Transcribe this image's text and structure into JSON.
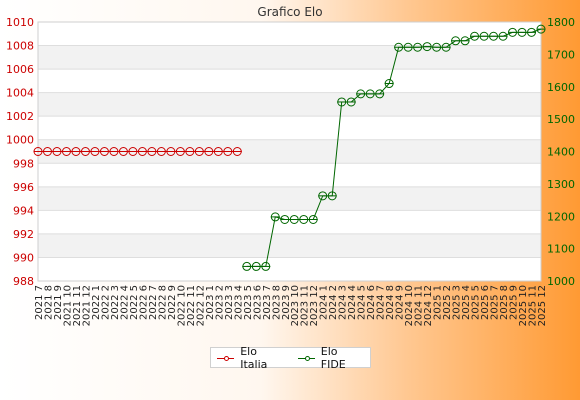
{
  "chart_data": {
    "type": "line",
    "title": "Grafico Elo",
    "categories": [
      "2021 7",
      "2021 8",
      "2021 9",
      "2021 10",
      "2021 11",
      "2021 12",
      "2022 1",
      "2022 2",
      "2022 3",
      "2022 4",
      "2022 5",
      "2022 6",
      "2022 7",
      "2022 8",
      "2022 9",
      "2022 10",
      "2022 11",
      "2022 12",
      "2023 1",
      "2023 2",
      "2023 3",
      "2023 4",
      "2023 5",
      "2023 6",
      "2023 7",
      "2023 8",
      "2023 9",
      "2023 10",
      "2023 11",
      "2023 12",
      "2024 1",
      "2024 2",
      "2024 3",
      "2024 4",
      "2024 5",
      "2024 6",
      "2024 7",
      "2024 8",
      "2024 9",
      "2024 10",
      "2024 11",
      "2024 12",
      "2025 1",
      "2025 2",
      "2025 3",
      "2025 4",
      "2025 5",
      "2025 6",
      "2025 7",
      "2025 8",
      "2025 9",
      "2025 10",
      "2025 11",
      "2025 12"
    ],
    "y_left": {
      "ticks": [
        988,
        990,
        992,
        994,
        996,
        998,
        1000,
        1002,
        1004,
        1006,
        1008,
        1010
      ],
      "range": [
        988,
        1010
      ]
    },
    "y_right": {
      "ticks": [
        1000,
        1100,
        1200,
        1300,
        1400,
        1500,
        1600,
        1700,
        1800
      ],
      "range": [
        1000,
        1800
      ]
    },
    "series": [
      {
        "name": "Elo Italia",
        "axis": "left",
        "color": "#cc0000",
        "values": [
          999,
          999,
          999,
          999,
          999,
          999,
          999,
          999,
          999,
          999,
          999,
          999,
          999,
          999,
          999,
          999,
          999,
          999,
          999,
          999,
          999,
          999,
          null,
          null,
          null,
          null,
          null,
          null,
          null,
          null,
          null,
          null,
          null,
          null,
          null,
          null,
          null,
          null,
          null,
          null,
          null,
          null,
          null,
          null,
          null,
          null,
          null,
          null,
          null,
          null,
          null,
          null,
          null,
          null
        ]
      },
      {
        "name": "Elo FIDE",
        "axis": "right",
        "color": "#006600",
        "values": [
          null,
          null,
          null,
          null,
          null,
          null,
          null,
          null,
          null,
          null,
          null,
          null,
          null,
          null,
          null,
          null,
          null,
          null,
          null,
          null,
          null,
          null,
          1045,
          1045,
          1045,
          1198,
          1190,
          1190,
          1190,
          1190,
          1263,
          1263,
          1553,
          1553,
          1578,
          1578,
          1578,
          1610,
          1722,
          1722,
          1722,
          1724,
          1722,
          1722,
          1742,
          1742,
          1756,
          1756,
          1756,
          1756,
          1768,
          1768,
          1768,
          1778
        ]
      }
    ],
    "grid": true,
    "legend_position": "bottom"
  }
}
